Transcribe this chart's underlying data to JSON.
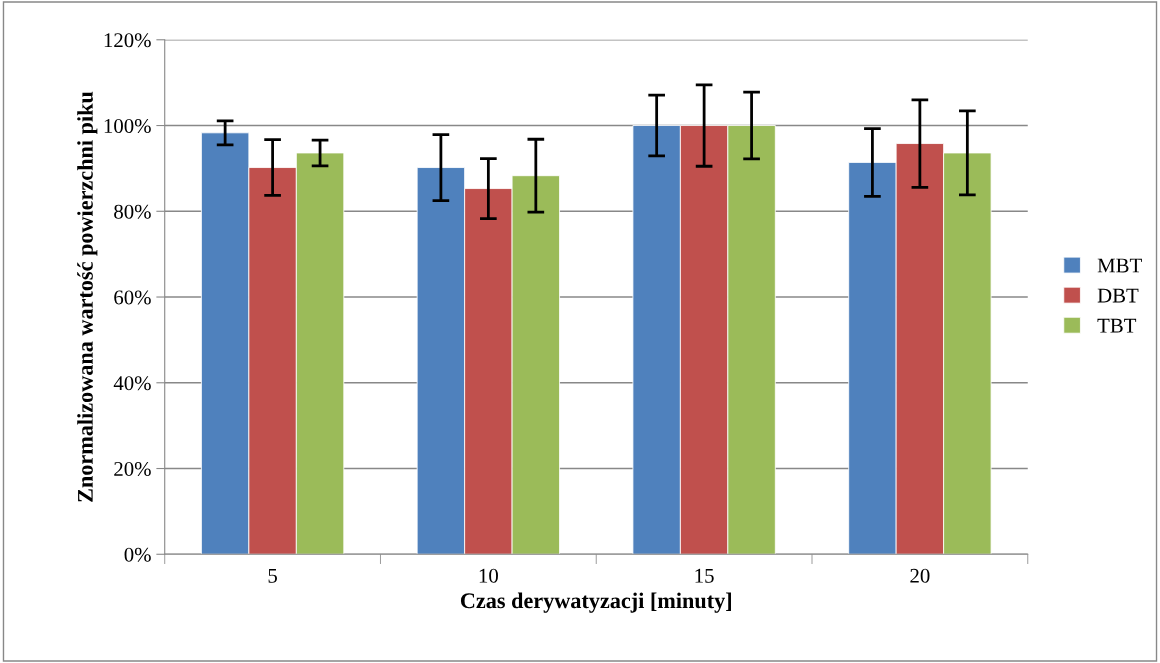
{
  "chart_data": {
    "type": "bar",
    "xlabel": "Czas derywatyzacji [minuty]",
    "ylabel": "Znormalizowana wartość powierzchni piku",
    "categories": [
      "5",
      "10",
      "15",
      "20"
    ],
    "series": [
      {
        "name": "MBT",
        "color": "#4f81bd",
        "values": [
          98.3,
          90.2,
          100,
          91.4
        ],
        "errors": [
          2.8,
          7.7,
          7.1,
          7.9
        ]
      },
      {
        "name": "DBT",
        "color": "#c0504d",
        "values": [
          90.2,
          85.3,
          100,
          95.8
        ],
        "errors": [
          6.5,
          7,
          9.5,
          10.2
        ]
      },
      {
        "name": "TBT",
        "color": "#9bbb59",
        "values": [
          93.6,
          88.3,
          100,
          93.6
        ],
        "errors": [
          3,
          8.5,
          7.8,
          9.8
        ]
      }
    ],
    "ylim": [
      0,
      120
    ],
    "yticks": [
      {
        "value": 0,
        "label": "0%"
      },
      {
        "value": 20,
        "label": "20%"
      },
      {
        "value": 40,
        "label": "40%"
      },
      {
        "value": 60,
        "label": "60%"
      },
      {
        "value": 80,
        "label": "80%"
      },
      {
        "value": 100,
        "label": "100%"
      },
      {
        "value": 120,
        "label": "120%"
      }
    ],
    "grid": "y",
    "legend": "right"
  }
}
